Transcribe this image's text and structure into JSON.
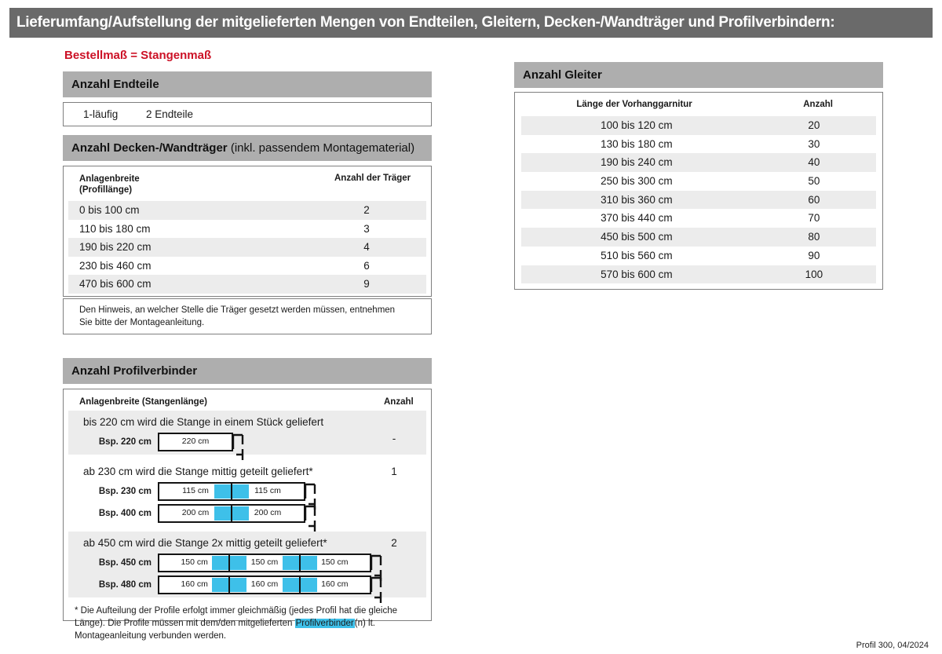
{
  "page": {
    "title": "Lieferumfang/Aufstellung der mitgelieferten Mengen von Endteilen, Gleitern, Decken-/Wandträger und Profilverbindern:",
    "subtitle_red": "Bestellmaß = Stangenmaß",
    "footer": "Profil 300, 04/2024"
  },
  "colors": {
    "title_bar": "#6a6a6a",
    "section_bar": "#aeaeae",
    "row_stripe": "#ececec",
    "accent_red": "#cc1126",
    "connector_cyan": "#3ec0e9"
  },
  "endteile": {
    "heading": "Anzahl Endteile",
    "row": {
      "col1": "1-läufig",
      "col2": "2 Endteile"
    }
  },
  "traeger": {
    "heading_bold": "Anzahl Decken-/Wandträger",
    "heading_normal": " (inkl. passendem Montagematerial)",
    "col1_header_line1": "Anlagenbreite",
    "col1_header_line2": "(Profillänge)",
    "col2_header": "Anzahl der Träger",
    "rows": [
      {
        "range": "0 bis 100 cm",
        "count": "2"
      },
      {
        "range": "110 bis 180 cm",
        "count": "3"
      },
      {
        "range": "190 bis 220 cm",
        "count": "4"
      },
      {
        "range": "230 bis 460 cm",
        "count": "6"
      },
      {
        "range": "470 bis 600 cm",
        "count": "9"
      }
    ],
    "note": "Den Hinweis, an welcher Stelle die Träger gesetzt werden müssen, entnehmen Sie bitte der Montageanleitung."
  },
  "gleiter": {
    "heading": "Anzahl Gleiter",
    "col1_header": "Länge der Vorhanggarnitur",
    "col2_header": "Anzahl",
    "rows": [
      {
        "range": "100 bis 120 cm",
        "count": "20"
      },
      {
        "range": "130 bis 180 cm",
        "count": "30"
      },
      {
        "range": "190 bis 240 cm",
        "count": "40"
      },
      {
        "range": "250 bis 300 cm",
        "count": "50"
      },
      {
        "range": "310 bis 360 cm",
        "count": "60"
      },
      {
        "range": "370 bis 440 cm",
        "count": "70"
      },
      {
        "range": "450 bis 500 cm",
        "count": "80"
      },
      {
        "range": "510 bis 560 cm",
        "count": "90"
      },
      {
        "range": "570 bis 600 cm",
        "count": "100"
      }
    ]
  },
  "profilverbinder": {
    "heading": "Anzahl Profilverbinder",
    "col1_header": "Anlagenbreite (Stangenlänge)",
    "col2_header": "Anzahl",
    "blocks": [
      {
        "text": "bis 220 cm wird die Stange in einem Stück geliefert",
        "count": "-",
        "examples": [
          {
            "label": "Bsp. 220 cm",
            "segments": [
              "220 cm"
            ]
          }
        ]
      },
      {
        "text": "ab 230 cm wird die Stange mittig geteilt geliefert*",
        "count": "1",
        "examples": [
          {
            "label": "Bsp. 230 cm",
            "segments": [
              "115 cm",
              "115 cm"
            ]
          },
          {
            "label": "Bsp. 400 cm",
            "segments": [
              "200 cm",
              "200 cm"
            ]
          }
        ]
      },
      {
        "text": "ab 450 cm wird die Stange 2x mittig geteilt geliefert*",
        "count": "2",
        "examples": [
          {
            "label": "Bsp. 450 cm",
            "segments": [
              "150 cm",
              "150 cm",
              "150 cm"
            ]
          },
          {
            "label": "Bsp. 480 cm",
            "segments": [
              "160 cm",
              "160 cm",
              "160 cm"
            ]
          }
        ]
      }
    ],
    "footnote_pre": "* Die Aufteilung der Profile erfolgt immer gleichmäßig (jedes Profil hat die gleiche Länge). Die Profile müssen mit dem/den mitgelieferten ",
    "footnote_highlight": "Profilverbinder",
    "footnote_post": "(n) lt. Montageanleitung verbunden werden."
  }
}
